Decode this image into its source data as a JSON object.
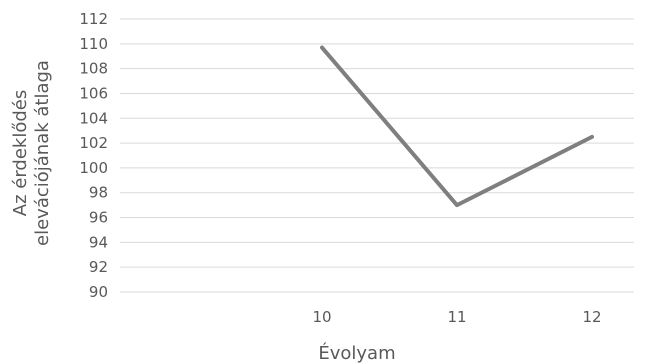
{
  "chart_data": {
    "type": "line",
    "x": [
      "10",
      "11",
      "12"
    ],
    "series": [
      {
        "values": [
          109.7,
          97.0,
          102.5
        ]
      }
    ],
    "xlabel": "Évolyam",
    "ylabel_lines": [
      "Az érdeklődés",
      "elevációjának átlaga"
    ],
    "ylim": [
      90,
      112
    ],
    "yticks": [
      90,
      92,
      94,
      96,
      98,
      100,
      102,
      104,
      106,
      108,
      110,
      112
    ],
    "x_positions": [
      0,
      1,
      2,
      3
    ],
    "grid": true,
    "legend": "none",
    "colors": {
      "line": "#7f7f7f",
      "grid": "#d9d9d9",
      "text": "#595959"
    }
  }
}
